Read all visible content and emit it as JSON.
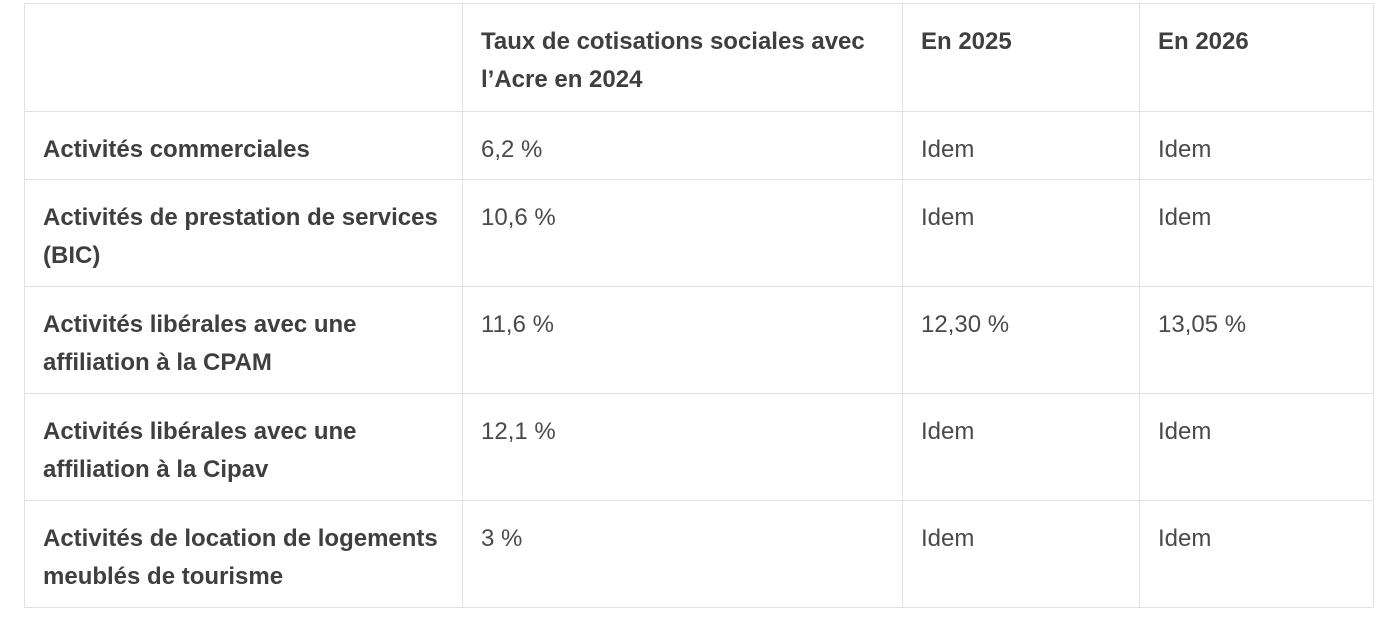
{
  "page": {
    "background_color": "#ffffff",
    "border_color": "#e2e2e2",
    "label_text_color": "#3f3f3f",
    "value_text_color": "#4a4a4a"
  },
  "table": {
    "columns": [
      "",
      "Taux de cotisations sociales avec l’Acre en 2024",
      "En 2025",
      "En 2026"
    ],
    "rows": [
      {
        "label": "Activités commerciales",
        "acre_2024": "6,2 %",
        "en_2025": "Idem",
        "en_2026": "Idem"
      },
      {
        "label": "Activités de prestation de services (BIC)",
        "acre_2024": "10,6 %",
        "en_2025": "Idem",
        "en_2026": "Idem"
      },
      {
        "label": "Activités libérales avec une affiliation à la CPAM",
        "acre_2024": "11,6 %",
        "en_2025": "12,30 %",
        "en_2026": "13,05 %"
      },
      {
        "label": "Activités libérales avec une affiliation à la Cipav",
        "acre_2024": "12,1 %",
        "en_2025": "Idem",
        "en_2026": "Idem"
      },
      {
        "label": "Activités de location de logements meublés de tourisme",
        "acre_2024": "3 %",
        "en_2025": "Idem",
        "en_2026": "Idem"
      }
    ]
  }
}
